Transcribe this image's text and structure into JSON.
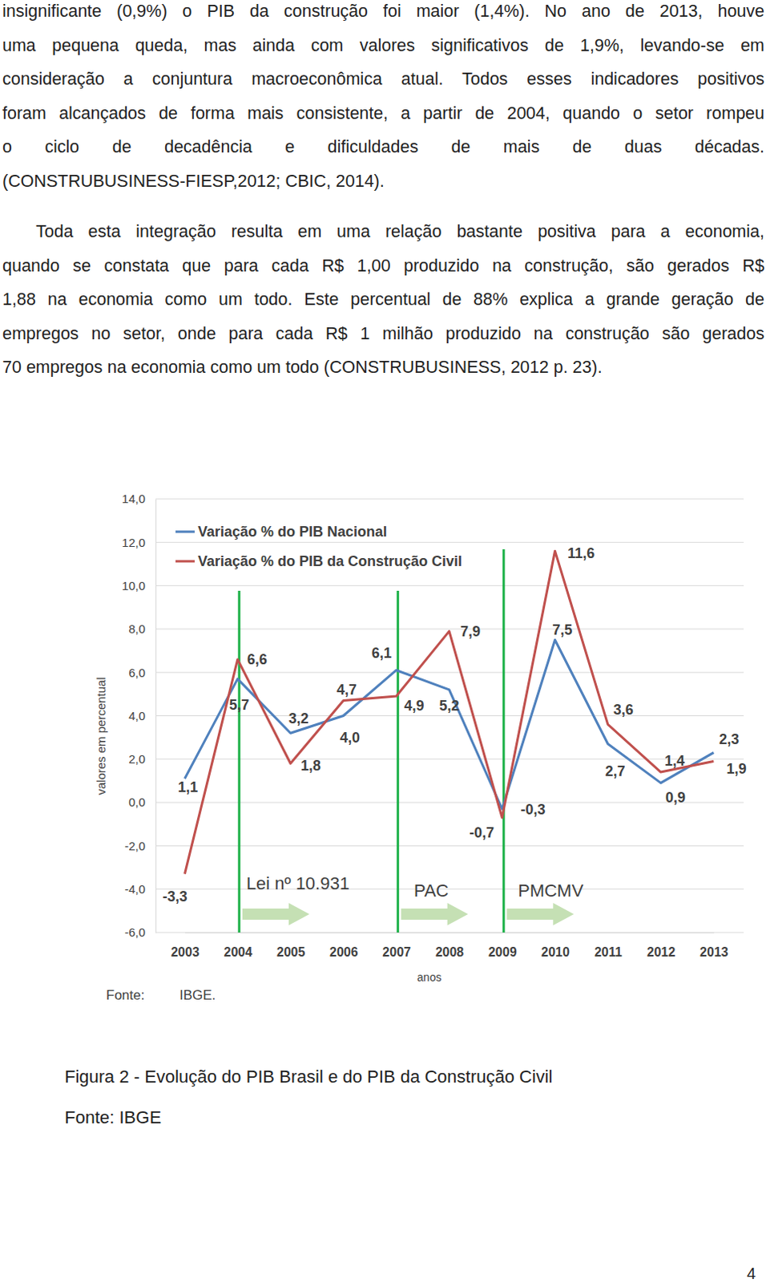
{
  "paragraphs": [
    [
      "insignificante (0,9%) o PIB da construção foi maior (1,4%). No ano de 2013, houve",
      "uma pequena queda, mas ainda com valores significativos de 1,9%, levando-se em",
      "consideração a conjuntura macroeconômica atual. Todos esses indicadores positivos",
      "foram alcançados de forma mais consistente, a partir de 2004, quando o setor rompeu",
      "o ciclo de decadência e dificuldades de mais de duas décadas.",
      "(CONSTRUBUSINESS-FIESP,2012; CBIC, 2014)."
    ],
    [
      "Toda esta integração resulta em uma relação bastante positiva para a economia,",
      "quando se constata que para cada R$ 1,00 produzido na construção, são gerados R$",
      "1,88 na economia como um todo. Este percentual de 88% explica a grande geração de",
      "empregos no setor, onde para cada R$ 1 milhão produzido na construção são gerados",
      "70 empregos na economia como um todo (CONSTRUBUSINESS, 2012 p. 23)."
    ]
  ],
  "chart_data": {
    "type": "line",
    "categories": [
      "2003",
      "2004",
      "2005",
      "2006",
      "2007",
      "2008",
      "2009",
      "2010",
      "2011",
      "2012",
      "2013"
    ],
    "series": [
      {
        "name": "Variação % do PIB Nacional",
        "color": "#4f81bd",
        "values": [
          1.1,
          5.7,
          3.2,
          4.0,
          6.1,
          5.2,
          -0.3,
          7.5,
          2.7,
          0.9,
          2.3
        ],
        "value_labels": [
          "1,1",
          "5,7",
          "3,2",
          "4,0",
          "6,1",
          "5,2",
          "-0,3",
          "7,5",
          "2,7",
          "0,9",
          "2,3"
        ]
      },
      {
        "name": "Variação % do PIB da Construção Civil",
        "color": "#c0504d",
        "values": [
          -3.3,
          6.6,
          1.8,
          4.7,
          4.9,
          7.9,
          -0.7,
          11.6,
          3.6,
          1.4,
          1.9
        ],
        "value_labels": [
          "-3,3",
          "6,6",
          "1,8",
          "4,7",
          "4,9",
          "7,9",
          "-0,7",
          "11,6",
          "3,6",
          "1,4",
          "1,9"
        ]
      }
    ],
    "ylim": [
      -6,
      14
    ],
    "yticks": [
      {
        "value": -6,
        "label": "-6,0"
      },
      {
        "value": -4,
        "label": "-4,0"
      },
      {
        "value": -2,
        "label": "-2,0"
      },
      {
        "value": 0,
        "label": "0,0"
      },
      {
        "value": 2,
        "label": "2,0"
      },
      {
        "value": 4,
        "label": "4,0"
      },
      {
        "value": 6,
        "label": "6,0"
      },
      {
        "value": 8,
        "label": "8,0"
      },
      {
        "value": 10,
        "label": "10,0"
      },
      {
        "value": 12,
        "label": "12,0"
      },
      {
        "value": 14,
        "label": "14,0"
      }
    ],
    "x_label": "anos",
    "y_label": "valores em percentual",
    "annotations": [
      {
        "text": "Lei nº 10.931",
        "category": "2004"
      },
      {
        "text": "PAC",
        "category": "2007"
      },
      {
        "text": "PMCMV",
        "category": "2009"
      }
    ],
    "source_label": "Fonte:",
    "source": "IBGE.",
    "grid": true,
    "legend": "upper-left",
    "data_labels": true
  },
  "caption": "Figura 2 - Evolução do PIB Brasil e do PIB da Construção Civil",
  "caption_source": "Fonte: IBGE",
  "page_number": "4"
}
